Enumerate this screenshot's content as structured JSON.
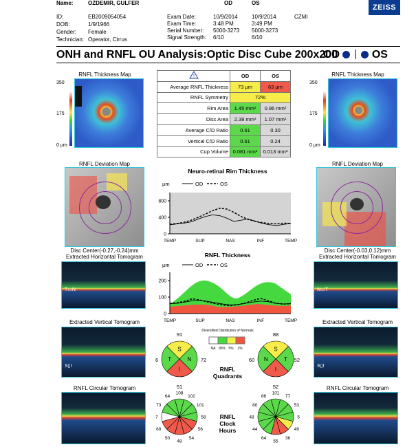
{
  "header": {
    "name_label": "Name:",
    "name": "OZDEMIR, GULFER",
    "od": "OD",
    "os": "OS",
    "id_label": "ID:",
    "id": "EB2009054054",
    "dob_label": "DOB:",
    "dob": "1/9/1966",
    "gender_label": "Gender:",
    "gender": "Female",
    "tech_label": "Technician:",
    "tech": "Operator, Cirrus",
    "exam_date_label": "Exam Date:",
    "exam_date_od": "10/9/2014",
    "exam_date_os": "10/9/2014",
    "site": "CZMI",
    "exam_time_label": "Exam Time:",
    "exam_time_od": "3:48 PM",
    "exam_time_os": "3:49 PM",
    "serial_label": "Serial Number:",
    "serial_od": "5000-3273",
    "serial_os": "5000-3273",
    "signal_label": "Signal Strength:",
    "signal_od": "6/10",
    "signal_os": "6/10",
    "brand": "ZEISS"
  },
  "title": "ONH and RNFL OU Analysis:Optic Disc Cube 200x200",
  "title_od": "OD",
  "title_os": "OS",
  "thickness_map_title": "RNFL Thickness Map",
  "scale": {
    "top": "350",
    "mid": "175",
    "bottom": "0 µm"
  },
  "table": {
    "warning_icon": "warning-icon",
    "col_od": "OD",
    "col_os": "OS",
    "rows": [
      {
        "name": "Average RNFL Thickness",
        "od": "73 µm",
        "os": "63 µm",
        "od_color": "yellow",
        "os_color": "red"
      },
      {
        "name": "RNFL Symmetry",
        "both": "72%",
        "color": "yellow"
      },
      {
        "name": "Rim Area",
        "od": "1.45 mm²",
        "os": "0.96 mm²",
        "od_color": "green",
        "os_color": "gray"
      },
      {
        "name": "Disc Area",
        "od": "2.38 mm²",
        "os": "1.07 mm²",
        "od_color": "gray",
        "os_color": "gray"
      },
      {
        "name": "Average C/D Ratio",
        "od": "0.61",
        "os": "0.30",
        "od_color": "green",
        "os_color": "gray"
      },
      {
        "name": "Vertical C/D Ratio",
        "od": "0.61",
        "os": "0.24",
        "od_color": "green",
        "os_color": "gray"
      },
      {
        "name": "Cup Volume",
        "od": "0.081 mm³",
        "os": "0.013 mm³",
        "od_color": "green",
        "os_color": "gray"
      }
    ]
  },
  "deviation_title": "RNFL Deviation Map",
  "disc_center_od": "Disc Center(-0.27,-0.24)mm",
  "disc_center_os": "Disc Center(-0.03,0.12)mm",
  "horiz_tomo": "Extracted Horizontal Tomogram",
  "vert_tomo": "Extracted Vertical Tomogram",
  "circ_tomo": "RNFL Circular Tomogram",
  "tomo_marks": {
    "h_left": "T",
    "h_right": "N",
    "v_top": "S",
    "v_bottom": "I"
  },
  "chart_data": [
    {
      "type": "line",
      "title": "Neuro-retinal Rim Thickness",
      "ylabel": "µm",
      "ytick_labels": [
        "0",
        "400",
        "800"
      ],
      "ylim": [
        0,
        1000
      ],
      "xtick_labels": [
        "TEMP",
        "SUP",
        "NAS",
        "INF",
        "TEMP"
      ],
      "series": [
        {
          "name": "OD",
          "style": "solid",
          "values": [
            220,
            240,
            260,
            290,
            360,
            420,
            460,
            440,
            380,
            300,
            330,
            360,
            310,
            250,
            220,
            200,
            230,
            250
          ]
        },
        {
          "name": "OS",
          "style": "dashed",
          "values": [
            230,
            250,
            280,
            330,
            400,
            480,
            560,
            620,
            600,
            520,
            420,
            350,
            300,
            270,
            250,
            240,
            260,
            250
          ]
        }
      ]
    },
    {
      "type": "line",
      "title": "RNFL Thickness",
      "ylabel": "µm",
      "ytick_labels": [
        "0",
        "100",
        "200"
      ],
      "ylim": [
        0,
        250
      ],
      "xtick_labels": [
        "TEMP",
        "SUP",
        "NAS",
        "INF",
        "TEMP"
      ],
      "series": [
        {
          "name": "OD",
          "style": "solid",
          "values": [
            60,
            62,
            70,
            78,
            80,
            74,
            66,
            58,
            52,
            55,
            62,
            70,
            76,
            72,
            62,
            58,
            60
          ]
        },
        {
          "name": "OS",
          "style": "dashed",
          "values": [
            62,
            66,
            75,
            90,
            82,
            70,
            60,
            52,
            48,
            54,
            64,
            80,
            92,
            78,
            62,
            58,
            60
          ]
        }
      ]
    }
  ],
  "quadrants": {
    "title": "RNFL Quadrants",
    "legend_title": "Diversified Distribution of Normals",
    "legend_labels": [
      "NA",
      "95%",
      "5%",
      "1%"
    ],
    "od": {
      "S": "91",
      "N": "72",
      "I": "51",
      "T": "76",
      "letters": [
        "S",
        "N",
        "I",
        "T"
      ],
      "colors": [
        "yellow",
        "green",
        "red",
        "green"
      ]
    },
    "os": {
      "S": "88",
      "N": "52",
      "I": "52",
      "T": "60",
      "letters": [
        "S",
        "T",
        "I",
        "N"
      ],
      "colors": [
        "yellow",
        "green",
        "red",
        "green"
      ]
    }
  },
  "clock": {
    "title": "RNFL Clock Hours",
    "od": {
      "values": [
        "108",
        "102",
        "101",
        "58",
        "56",
        "54",
        "48",
        "50",
        "60",
        "97",
        "73",
        "64"
      ],
      "colors": [
        "green",
        "green",
        "green",
        "green",
        "red",
        "red",
        "red",
        "red",
        "red",
        "white",
        "green",
        "green"
      ]
    },
    "os": {
      "values": [
        "101",
        "77",
        "53",
        "55",
        "49",
        "36",
        "55",
        "64",
        "44",
        "48",
        "80",
        "86"
      ],
      "colors": [
        "green",
        "green",
        "green",
        "green",
        "yellow",
        "red",
        "red",
        "green",
        "green",
        "green",
        "green",
        "green"
      ]
    }
  },
  "colors": {
    "green": "#5bd94b",
    "yellow": "#f7ed4a",
    "red": "#ef5a4a",
    "white": "#ffffff",
    "gray": "#d8d8d8",
    "accent": "#34c6d9",
    "brand": "#0a3d91"
  }
}
